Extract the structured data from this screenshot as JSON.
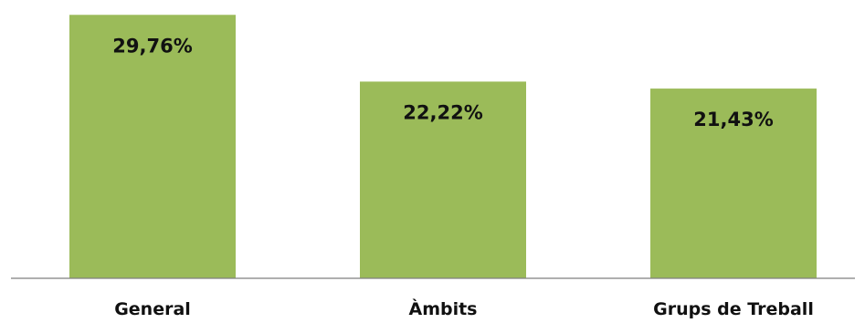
{
  "chart_data": {
    "type": "bar",
    "categories": [
      "General",
      "Àmbits",
      "Grups de Treball"
    ],
    "values": [
      29.76,
      22.22,
      21.43
    ],
    "data_labels": [
      "29,76%",
      "22,22%",
      "21,43%"
    ],
    "title": "",
    "xlabel": "",
    "ylabel": "",
    "ylim": [
      0,
      30.2
    ],
    "unit": "%",
    "grid": false,
    "legend": "none",
    "colors": {
      "bar": "#9BBB59",
      "axis": "#7f7f7f",
      "text": "#111111"
    }
  }
}
